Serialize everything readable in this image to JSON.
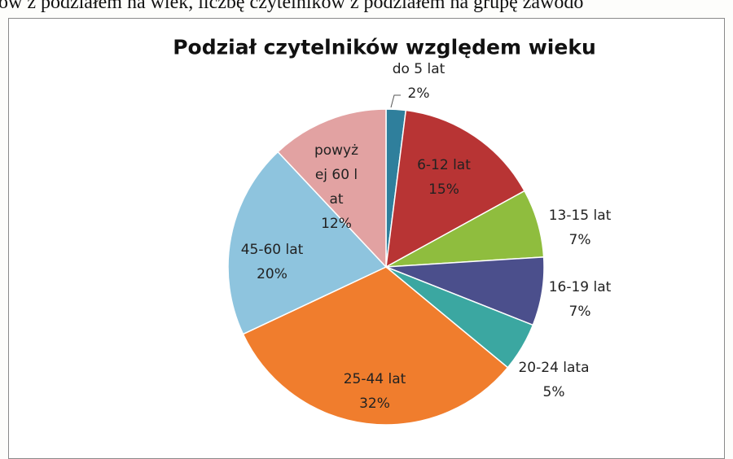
{
  "page_text": "ów z podziałem na wiek, liczbę czytelników z podziałem na grupę zawodo",
  "chart_data": {
    "type": "pie",
    "title": "Podział czytelników względem wieku",
    "categories": [
      "do 5 lat",
      "6-12 lat",
      "13-15 lat",
      "16-19 lat",
      "20-24 lata",
      "25-44 lat",
      "45-60 lat",
      "powyżej 60 lat"
    ],
    "values": [
      2,
      15,
      7,
      7,
      5,
      32,
      20,
      12
    ],
    "value_labels": [
      "2%",
      "15%",
      "7%",
      "7%",
      "5%",
      "32%",
      "20%",
      "12%"
    ],
    "colors": [
      "#2f7f9c",
      "#b83434",
      "#8fbd3e",
      "#4b4f8c",
      "#3ba7a1",
      "#f07d2d",
      "#8ec4de",
      "#e2a2a2"
    ]
  }
}
